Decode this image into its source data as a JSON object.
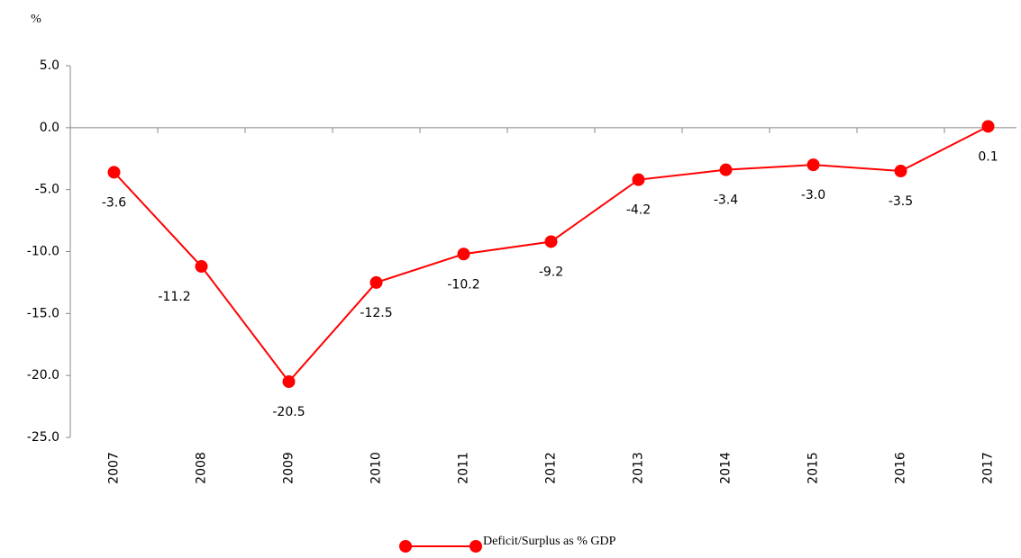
{
  "chart_data": {
    "type": "line",
    "y_axis_label": "%",
    "categories": [
      "2007",
      "2008",
      "2009",
      "2010",
      "2011",
      "2012",
      "2013",
      "2014",
      "2015",
      "2016",
      "2017"
    ],
    "series": [
      {
        "name": "Deficit/Surplus as % GDP",
        "color": "#ff0000",
        "values": [
          -3.6,
          -11.2,
          -20.5,
          -12.5,
          -10.2,
          -9.2,
          -4.2,
          -3.4,
          -3.0,
          -3.5,
          0.1
        ],
        "value_labels": [
          "-3.6",
          "-11.2",
          "-20.5",
          "-12.5",
          "-10.2",
          "-9.2",
          "-4.2",
          "-3.4",
          "-3.0",
          "-3.5",
          "0.1"
        ]
      }
    ],
    "ylim": [
      -25,
      5
    ],
    "yticks": [
      {
        "value": -25,
        "label": "-25.0"
      },
      {
        "value": -20,
        "label": "-20.0"
      },
      {
        "value": -15,
        "label": "-15.0"
      },
      {
        "value": -10,
        "label": "-10.0"
      },
      {
        "value": -5,
        "label": "-5.0"
      },
      {
        "value": 0,
        "label": "0.0"
      },
      {
        "value": 5,
        "label": "5.0"
      }
    ],
    "legend": "bottom"
  }
}
